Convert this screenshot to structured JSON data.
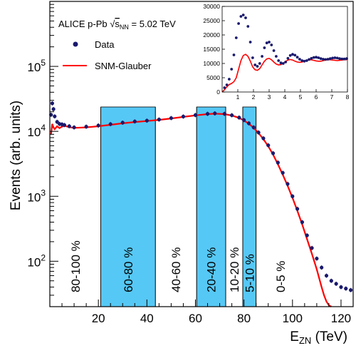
{
  "chart_data": {
    "type": "line",
    "title": "ALICE p-Pb √s_NN = 5.02 TeV",
    "title_parts": {
      "prefix": "ALICE p-Pb ",
      "sqrt": "s",
      "sub": "NN",
      "suffix": " = 5.02 TeV"
    },
    "xlabel": {
      "main": "E",
      "sub": "ZN",
      "unit": " (TeV)"
    },
    "ylabel": "Events (arb. units)",
    "x_range": [
      0,
      125
    ],
    "y_scale": "log",
    "y_range": [
      20,
      1000000
    ],
    "x_ticks": [
      {
        "value": 20,
        "label": "20"
      },
      {
        "value": 40,
        "label": "40"
      },
      {
        "value": 60,
        "label": "60"
      },
      {
        "value": 80,
        "label": "80"
      },
      {
        "value": 100,
        "label": "100"
      },
      {
        "value": 120,
        "label": "120"
      }
    ],
    "y_ticks": [
      {
        "value": 100,
        "base": "10",
        "exp": "2"
      },
      {
        "value": 1000,
        "base": "10",
        "exp": "3"
      },
      {
        "value": 10000,
        "base": "10",
        "exp": "4"
      },
      {
        "value": 100000,
        "base": "10",
        "exp": "5"
      }
    ],
    "legend": {
      "position": "top-left",
      "entries": [
        {
          "label": "Data",
          "style": "marker"
        },
        {
          "label": "SNM-Glauber",
          "style": "line"
        }
      ]
    },
    "colors": {
      "data": "#1a1a6e",
      "model": "#ff0000",
      "band": "#56c8f5"
    },
    "centrality_classes": [
      {
        "label": "80-100 %",
        "x_min": 0,
        "x_max": 21,
        "shaded": false
      },
      {
        "label": "60-80 %",
        "x_min": 21,
        "x_max": 43.5,
        "shaded": true
      },
      {
        "label": "40-60 %",
        "x_min": 43.5,
        "x_max": 60.5,
        "shaded": false
      },
      {
        "label": "20-40 %",
        "x_min": 60.5,
        "x_max": 72.5,
        "shaded": true
      },
      {
        "label": "10-20 %",
        "x_min": 72.5,
        "x_max": 79.5,
        "shaded": false
      },
      {
        "label": "5-10 %",
        "x_min": 79.5,
        "x_max": 85,
        "shaded": true
      },
      {
        "label": "0-5 %",
        "x_min": 85,
        "x_max": 125,
        "shaded": false
      }
    ],
    "series": [
      {
        "name": "Data",
        "x": [
          0.5,
          1,
          1.5,
          2,
          3,
          4,
          5,
          6,
          8,
          10,
          15,
          20,
          25,
          30,
          35,
          40,
          45,
          50,
          55,
          60,
          65,
          68,
          72,
          75,
          78,
          80,
          82,
          84,
          86,
          88,
          90,
          92,
          94,
          96,
          98,
          100,
          102,
          104,
          106,
          108,
          110,
          112,
          114,
          116,
          118,
          120,
          122,
          124
        ],
        "y": [
          18000,
          27000,
          22000,
          17000,
          14000,
          13000,
          12800,
          12500,
          12000,
          11500,
          11800,
          12300,
          12900,
          13600,
          14200,
          14600,
          15200,
          16000,
          16900,
          17800,
          18600,
          18900,
          18600,
          17700,
          16300,
          14900,
          13300,
          11500,
          9600,
          7800,
          6100,
          4600,
          3300,
          2300,
          1550,
          1000,
          640,
          400,
          250,
          160,
          110,
          80,
          60,
          50,
          45,
          40,
          38,
          36
        ]
      },
      {
        "name": "SNM-Glauber",
        "x": [
          0.5,
          1,
          1.5,
          2,
          3,
          4,
          5,
          6,
          8,
          10,
          15,
          20,
          25,
          30,
          35,
          40,
          45,
          50,
          55,
          60,
          65,
          68,
          72,
          75,
          78,
          80,
          82,
          84,
          86,
          88,
          90,
          92,
          94,
          96,
          98,
          100,
          102,
          104,
          106,
          108,
          110,
          112,
          113,
          114,
          115,
          116
        ],
        "y": [
          9000,
          13000,
          11500,
          10800,
          12000,
          11200,
          11800,
          12200,
          11600,
          11300,
          11500,
          12000,
          12600,
          13300,
          13900,
          14400,
          15000,
          15800,
          16700,
          17600,
          18400,
          18700,
          18400,
          17500,
          16100,
          14700,
          13100,
          11300,
          9400,
          7600,
          5900,
          4400,
          3100,
          2150,
          1450,
          950,
          600,
          370,
          220,
          130,
          75,
          40,
          30,
          24,
          21,
          20
        ]
      }
    ],
    "inset": {
      "x_range": [
        0,
        8
      ],
      "y_range": [
        0,
        30000
      ],
      "x_ticks": [
        "1",
        "2",
        "3",
        "4",
        "5",
        "6",
        "7",
        "8"
      ],
      "y_ticks": [
        "0",
        "5000",
        "10000",
        "15000",
        "20000",
        "25000",
        "30000"
      ],
      "series": [
        {
          "name": "Data",
          "x": [
            0.15,
            0.3,
            0.45,
            0.6,
            0.75,
            0.9,
            1.05,
            1.2,
            1.35,
            1.5,
            1.65,
            1.8,
            1.95,
            2.1,
            2.25,
            2.4,
            2.55,
            2.7,
            2.85,
            3.0,
            3.15,
            3.3,
            3.45,
            3.6,
            3.75,
            3.9,
            4.05,
            4.2,
            4.35,
            4.5,
            4.65,
            4.8,
            4.95,
            5.1,
            5.25,
            5.4,
            5.55,
            5.7,
            5.85,
            6.0,
            6.15,
            6.3,
            6.45,
            6.6,
            6.75,
            6.9,
            7.05,
            7.2,
            7.35,
            7.5,
            7.65,
            7.8,
            7.95
          ],
          "y": [
            1500,
            2500,
            4500,
            8000,
            13000,
            19000,
            24000,
            26500,
            27000,
            26000,
            23000,
            17500,
            12000,
            9500,
            9000,
            10000,
            12500,
            15500,
            17200,
            17500,
            16500,
            14500,
            12500,
            11000,
            10200,
            10000,
            10500,
            11800,
            12800,
            13200,
            12900,
            12200,
            11500,
            11000,
            10800,
            11000,
            11400,
            11800,
            12100,
            12200,
            12000,
            11700,
            11500,
            11400,
            11500,
            11700,
            11900,
            12000,
            11900,
            11700,
            11600,
            11600,
            11700
          ]
        },
        {
          "name": "SNM-Glauber",
          "x": [
            0.0,
            0.15,
            0.3,
            0.45,
            0.6,
            0.75,
            0.9,
            1.05,
            1.2,
            1.35,
            1.5,
            1.65,
            1.8,
            1.95,
            2.1,
            2.25,
            2.4,
            2.55,
            2.7,
            2.85,
            3.0,
            3.15,
            3.3,
            3.45,
            3.6,
            3.75,
            3.9,
            4.05,
            4.2,
            4.35,
            4.5,
            4.65,
            4.8,
            4.95,
            5.1,
            5.25,
            5.4,
            5.55,
            5.7,
            5.85,
            6.0,
            6.15,
            6.3,
            6.45,
            6.6,
            6.75,
            6.9,
            7.05,
            7.2,
            7.35,
            7.5,
            7.65,
            7.8,
            7.95
          ],
          "y": [
            0,
            800,
            1800,
            2600,
            3000,
            3600,
            5000,
            8000,
            11000,
            12800,
            13200,
            12500,
            10800,
            8800,
            7800,
            7600,
            8200,
            9500,
            10800,
            11600,
            11800,
            11300,
            10500,
            9800,
            9500,
            9600,
            10000,
            10700,
            11200,
            11400,
            11200,
            10800,
            10500,
            10400,
            10500,
            10800,
            11100,
            11300,
            11300,
            11100,
            10900,
            10800,
            10800,
            11000,
            11200,
            11300,
            11300,
            11200,
            11100,
            11000,
            11100,
            11200,
            11300,
            11300
          ]
        }
      ]
    }
  }
}
